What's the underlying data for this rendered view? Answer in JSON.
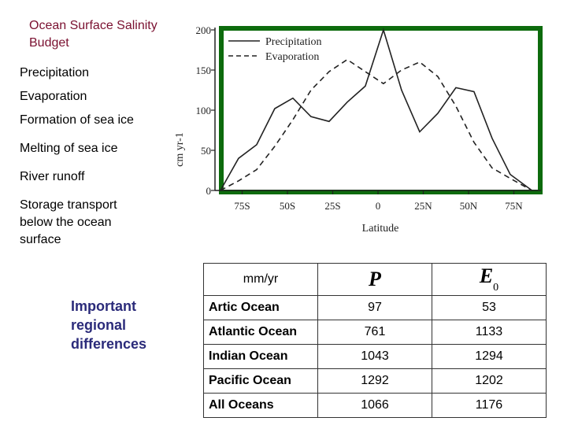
{
  "slide": {
    "title": "Ocean Surface Salinity Budget",
    "budget_items": [
      "Precipitation",
      "Evaporation",
      "Formation of sea ice",
      "Melting of sea ice",
      "River runoff",
      "Storage transport below the ocean surface"
    ],
    "side_note": "Important regional differences"
  },
  "table": {
    "unit_header": "mm/yr",
    "col_p_symbol": "P",
    "col_e_symbol": "E",
    "col_e_subscript": "0",
    "rows": [
      {
        "region": "Artic Ocean",
        "p": "97",
        "e": "53"
      },
      {
        "region": "Atlantic Ocean",
        "p": "761",
        "e": "1133"
      },
      {
        "region": "Indian Ocean",
        "p": "1043",
        "e": "1294"
      },
      {
        "region": "Pacific Ocean",
        "p": "1292",
        "e": "1202"
      },
      {
        "region": "All Oceans",
        "p": "1066",
        "e": "1176"
      }
    ]
  },
  "chart_data": {
    "type": "line",
    "xlabel": "Latitude",
    "ylabel": "cm yr-1",
    "xlim": [
      -90,
      90
    ],
    "ylim": [
      0,
      200
    ],
    "x_ticks": [
      -75,
      -50,
      -25,
      0,
      25,
      50,
      75
    ],
    "x_tick_labels": [
      "75S",
      "50S",
      "25S",
      "0",
      "25N",
      "50N",
      "75N"
    ],
    "y_ticks": [
      0,
      50,
      100,
      150,
      200
    ],
    "grid": false,
    "legend_position": "top-left",
    "frame_color": "#0d6b0d",
    "series": [
      {
        "name": "Precipitation",
        "style": "solid",
        "x": [
          -87,
          -77,
          -67,
          -57,
          -47,
          -37,
          -27,
          -17,
          -7,
          3,
          13,
          23,
          33,
          43,
          53,
          63,
          73,
          85
        ],
        "y": [
          0,
          40,
          57,
          102,
          115,
          92,
          86,
          110,
          130,
          200,
          125,
          73,
          96,
          128,
          123,
          65,
          20,
          0
        ]
      },
      {
        "name": "Evaporation",
        "style": "dashed",
        "x": [
          -87,
          -77,
          -67,
          -57,
          -47,
          -37,
          -27,
          -17,
          -7,
          3,
          13,
          23,
          33,
          43,
          53,
          63,
          73,
          85
        ],
        "y": [
          0,
          12,
          26,
          55,
          88,
          125,
          148,
          163,
          148,
          133,
          150,
          160,
          142,
          105,
          60,
          28,
          15,
          0
        ]
      }
    ]
  }
}
